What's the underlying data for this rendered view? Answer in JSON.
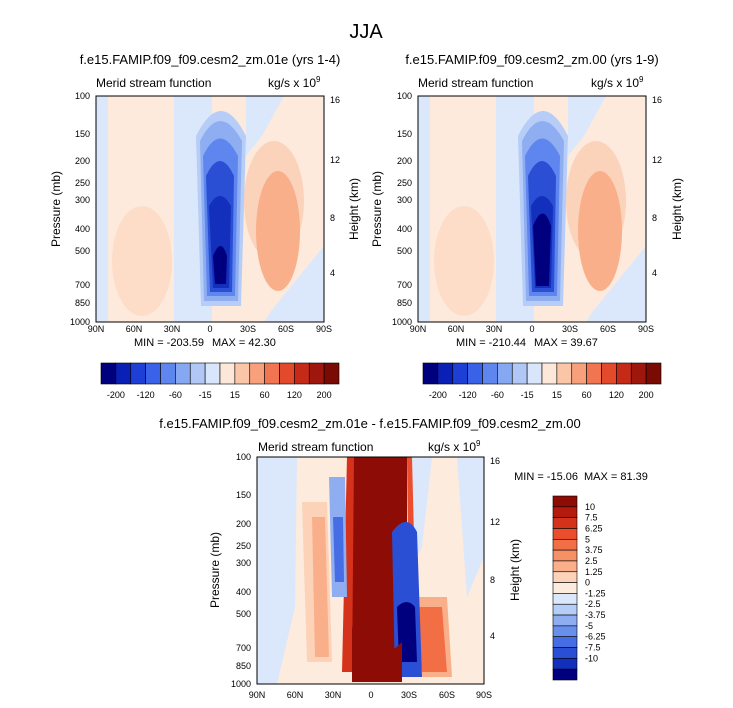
{
  "figure_title": "JJA",
  "chart_data": [
    {
      "type": "heatmap",
      "title": "f.e15.FAMIP.f09_f09.cesm2_zm.01e (yrs 1-4)",
      "left_string": "Merid stream function",
      "units": "kg/s x 10",
      "units_exp": "9",
      "ylabel": "Pressure (mb)",
      "ylabel_right": "Height (km)",
      "x_ticks": [
        "90N",
        "60N",
        "30N",
        "0",
        "30S",
        "60S",
        "90S"
      ],
      "y_ticks": [
        "100",
        "150",
        "200",
        "250",
        "300",
        "400",
        "500",
        "700",
        "850",
        "1000"
      ],
      "y2_ticks": [
        "16",
        "12",
        "8",
        "4"
      ],
      "min_label": "MIN = -203.59",
      "max_label": "MAX = 42.30",
      "min": -203.59,
      "max": 42.3
    },
    {
      "type": "heatmap",
      "title": "f.e15.FAMIP.f09_f09.cesm2_zm.00 (yrs 1-9)",
      "left_string": "Merid stream function",
      "units": "kg/s x 10",
      "units_exp": "9",
      "ylabel": "Pressure (mb)",
      "ylabel_right": "Height (km)",
      "x_ticks": [
        "90N",
        "60N",
        "30N",
        "0",
        "30S",
        "60S",
        "90S"
      ],
      "y_ticks": [
        "100",
        "150",
        "200",
        "250",
        "300",
        "400",
        "500",
        "700",
        "850",
        "1000"
      ],
      "y2_ticks": [
        "16",
        "12",
        "8",
        "4"
      ],
      "min_label": "MIN = -210.44",
      "max_label": "MAX = 39.67",
      "min": -210.44,
      "max": 39.67
    },
    {
      "type": "heatmap",
      "title": "f.e15.FAMIP.f09_f09.cesm2_zm.01e - f.e15.FAMIP.f09_f09.cesm2_zm.00",
      "left_string": "Merid stream function",
      "units": "kg/s x 10",
      "units_exp": "9",
      "ylabel": "Pressure (mb)",
      "ylabel_right": "Height (km)",
      "x_ticks": [
        "90N",
        "60N",
        "30N",
        "0",
        "30S",
        "60S",
        "90S"
      ],
      "y_ticks": [
        "100",
        "150",
        "200",
        "250",
        "300",
        "400",
        "500",
        "700",
        "850",
        "1000"
      ],
      "y2_ticks": [
        "16",
        "12",
        "8",
        "4"
      ],
      "min_label": "MIN = -15.06",
      "max_label": "MAX = 81.39",
      "min": -15.06,
      "max": 81.39
    }
  ],
  "colorbar_top": {
    "labels": [
      "-200",
      "-120",
      "-60",
      "-15",
      "15",
      "60",
      "120",
      "200"
    ],
    "colors": [
      "#00007f",
      "#0a1fb5",
      "#1e3fd6",
      "#3a62e8",
      "#5e86ee",
      "#86a8f2",
      "#b1c8f6",
      "#d8e5fa",
      "#fde7d8",
      "#fbc6a8",
      "#f8a07c",
      "#f27551",
      "#e34a2c",
      "#c52a18",
      "#9f160c",
      "#7a0a04"
    ]
  },
  "colorbar_diff": {
    "labels": [
      "10",
      "7.5",
      "6.25",
      "5",
      "3.75",
      "2.5",
      "1.25",
      "0",
      "-1.25",
      "-2.5",
      "-3.75",
      "-5",
      "-6.25",
      "-7.5",
      "-10"
    ],
    "colors": [
      "#8e0c06",
      "#b51a0e",
      "#d5321c",
      "#ea4e2d",
      "#f26e45",
      "#f69065",
      "#f9b08a",
      "#fcd2b8",
      "#fdebdd",
      "#dbe8fb",
      "#b6cdf7",
      "#8faef2",
      "#698fec",
      "#466de3",
      "#2a4fd5",
      "#1230bb",
      "#00007f"
    ]
  }
}
